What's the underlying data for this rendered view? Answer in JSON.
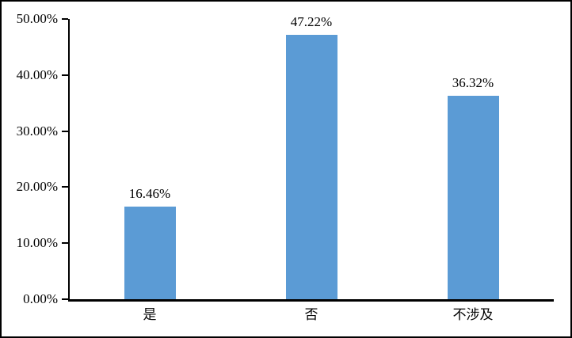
{
  "chart_data": {
    "type": "bar",
    "title": "",
    "xlabel": "",
    "ylabel": "",
    "categories": [
      "是",
      "否",
      "不涉及"
    ],
    "values": [
      16.46,
      47.22,
      36.32
    ],
    "data_labels": [
      "16.46%",
      "47.22%",
      "36.32%"
    ],
    "y_ticks": [
      {
        "value": 0,
        "label": "0.00%"
      },
      {
        "value": 10,
        "label": "10.00%"
      },
      {
        "value": 20,
        "label": "20.00%"
      },
      {
        "value": 30,
        "label": "30.00%"
      },
      {
        "value": 40,
        "label": "40.00%"
      },
      {
        "value": 50,
        "label": "50.00%"
      }
    ],
    "ylim": [
      0,
      50
    ],
    "grid": false,
    "legend": false,
    "colors": {
      "bar": "#5B9BD5",
      "axis": "#000000",
      "text": "#000000",
      "background": "#FFFFFF",
      "frame_border": "#000000"
    }
  }
}
